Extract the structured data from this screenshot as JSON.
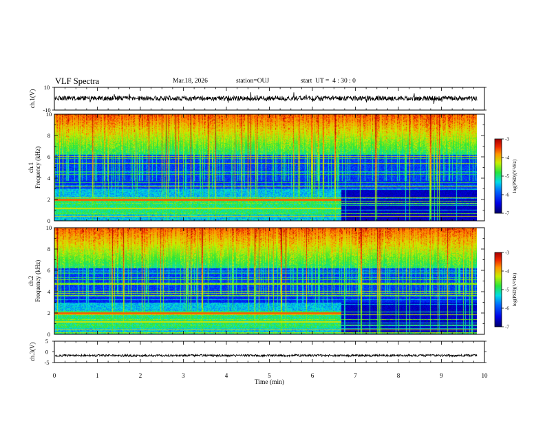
{
  "header": {
    "title": "VLF Spectra",
    "date": "Mar.18, 2026",
    "station": "station=OUJ",
    "start_ut": "start  UT =  4 : 30 : 0"
  },
  "chart_data": [
    {
      "type": "line",
      "panel": "ch1-waveform",
      "ylabel": "ch.1(V)",
      "yticks": [
        "10",
        "-10"
      ],
      "ylim": [
        -10,
        10
      ],
      "xlim": [
        0,
        10
      ],
      "signal_level": 0.3
    },
    {
      "type": "heatmap",
      "panel": "ch1-spectrogram",
      "ylabel": "ch.1 Frequency (kHz)",
      "yticks": [
        "0",
        "2",
        "4",
        "6",
        "8",
        "10"
      ],
      "ylim": [
        0,
        10
      ],
      "xlim": [
        0,
        10
      ],
      "data_end_min": 9.83,
      "tone_change_min": 6.67,
      "colorbar": {
        "label": "log(PSD)(V²/Hz)",
        "ticks": [
          "-3",
          "-4",
          "-5",
          "-6",
          "-7"
        ],
        "range": [
          -7,
          -3
        ]
      }
    },
    {
      "type": "heatmap",
      "panel": "ch2-spectrogram",
      "ylabel": "ch.2 Frequency (kHz)",
      "yticks": [
        "0",
        "2",
        "4",
        "6",
        "8",
        "10"
      ],
      "ylim": [
        0,
        10
      ],
      "xlim": [
        0,
        10
      ],
      "data_end_min": 9.83,
      "tone_change_min": 6.67,
      "colorbar": {
        "label": "log(PSD)(V²/Hz)",
        "ticks": [
          "-3",
          "-4",
          "-5",
          "-6",
          "-7"
        ],
        "range": [
          -7,
          -3
        ]
      }
    },
    {
      "type": "line",
      "panel": "ch3-waveform",
      "ylabel": "ch.3(V)",
      "yticks": [
        "5",
        "0",
        "-5"
      ],
      "ylim": [
        -5,
        5
      ],
      "xlim": [
        0,
        10
      ],
      "signal_level": -1.7
    }
  ],
  "x_axis": {
    "label": "Time (min)",
    "ticks": [
      "0",
      "1",
      "2",
      "3",
      "4",
      "5",
      "6",
      "7",
      "8",
      "9",
      "10"
    ]
  }
}
